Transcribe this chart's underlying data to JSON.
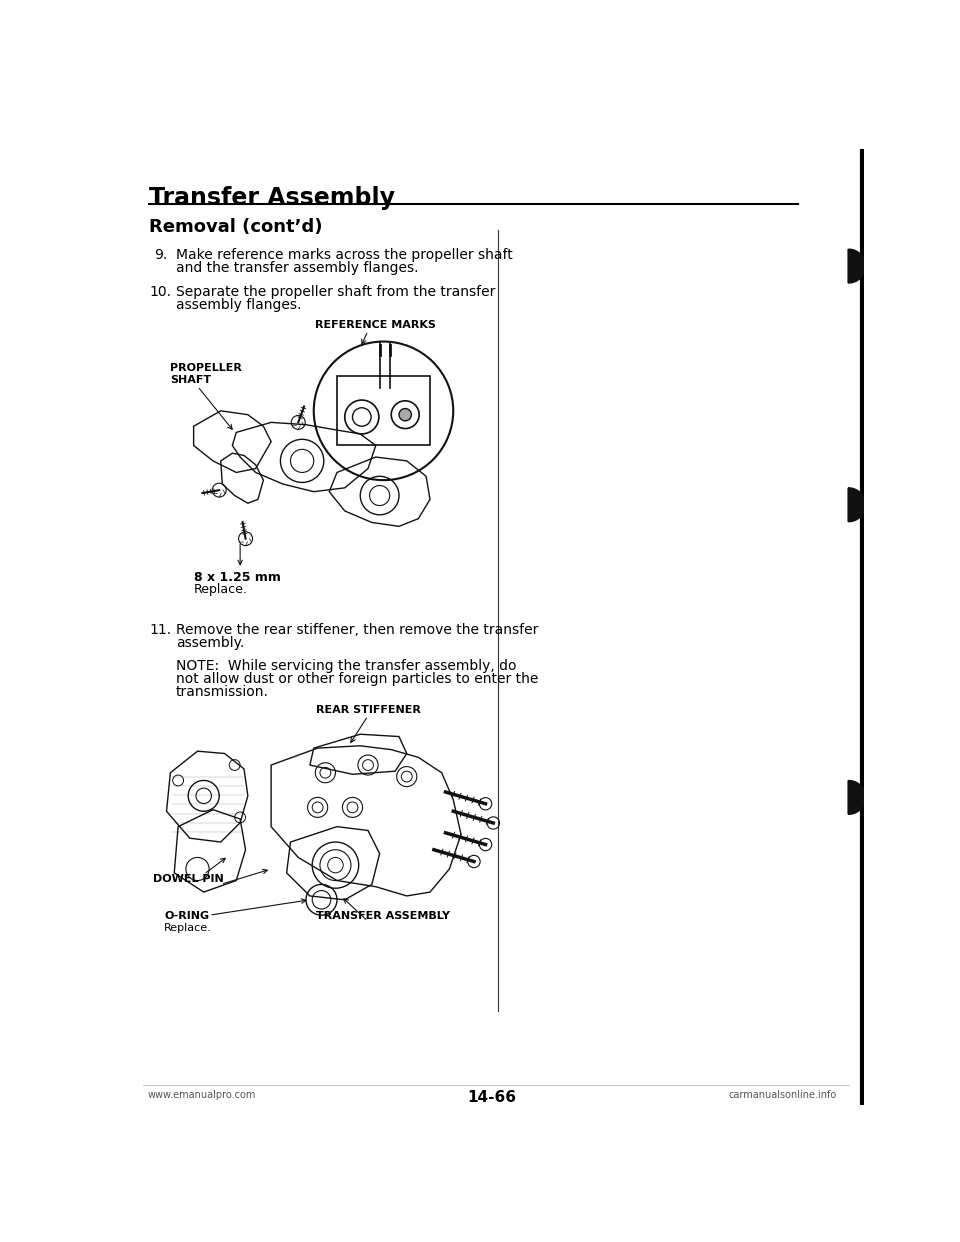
{
  "title": "Transfer Assembly",
  "section_title": "Removal (cont’d)",
  "bg_color": "#ffffff",
  "text_color": "#000000",
  "page_width": 9.6,
  "page_height": 12.42,
  "step9_num": "9.",
  "step9_line1": "Make reference marks across the propeller shaft",
  "step9_line2": "and the transfer assembly flanges.",
  "step10_num": "10.",
  "step10_line1": "Separate the propeller shaft from the transfer",
  "step10_line2": "assembly flanges.",
  "ref_marks_label": "REFERENCE MARKS",
  "propeller_shaft_label": "PROPELLER\nSHAFT",
  "bolt_label_bold": "8 x 1.25 mm",
  "bolt_label_reg": "Replace.",
  "step11_num": "11.",
  "step11_line1": "Remove the rear stiffener, then remove the transfer",
  "step11_line2": "assembly.",
  "note_line1": "NOTE:  While servicing the transfer assembly, do",
  "note_line2": "not allow dust or other foreign particles to enter the",
  "note_line3": "transmission.",
  "rear_stiffener_label": "REAR STIFFENER",
  "dowel_pin_label": "DOWEL PIN",
  "oring_label": "O-RING",
  "oring_sub": "Replace.",
  "transfer_assembly_label": "TRANSFER ASSEMBLY",
  "footer_left": "www.emanualpro.com",
  "footer_page": "14-66",
  "footer_right": "carmanualsonline.info",
  "lc": "#111111",
  "line_color": "#000000"
}
